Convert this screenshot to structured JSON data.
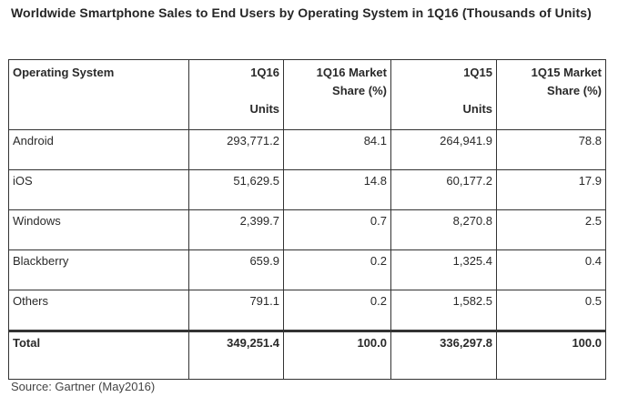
{
  "title": "Worldwide Smartphone Sales to End Users by Operating System in 1Q16 (Thousands of Units)",
  "table": {
    "headers": {
      "os": "Operating System",
      "q16_units_top": "1Q16",
      "q16_units_bottom": "Units",
      "q16_share_line1": "1Q16 Market",
      "q16_share_line2": "Share (%)",
      "q15_units_top": "1Q15",
      "q15_units_bottom": "Units",
      "q15_share_line1": "1Q15 Market",
      "q15_share_line2": "Share (%)"
    },
    "rows": [
      {
        "os": "Android",
        "q16_units": "293,771.2",
        "q16_share": "84.1",
        "q15_units": "264,941.9",
        "q15_share": "78.8"
      },
      {
        "os": "iOS",
        "q16_units": "51,629.5",
        "q16_share": "14.8",
        "q15_units": "60,177.2",
        "q15_share": "17.9"
      },
      {
        "os": "Windows",
        "q16_units": "2,399.7",
        "q16_share": "0.7",
        "q15_units": "8,270.8",
        "q15_share": "2.5"
      },
      {
        "os": "Blackberry",
        "q16_units": "659.9",
        "q16_share": "0.2",
        "q15_units": "1,325.4",
        "q15_share": "0.4"
      },
      {
        "os": "Others",
        "q16_units": "791.1",
        "q16_share": "0.2",
        "q15_units": "1,582.5",
        "q15_share": "0.5"
      }
    ],
    "total": {
      "os": "Total",
      "q16_units": "349,251.4",
      "q16_share": "100.0",
      "q15_units": "336,297.8",
      "q15_share": "100.0"
    }
  },
  "source": "Source: Gartner (May2016)"
}
